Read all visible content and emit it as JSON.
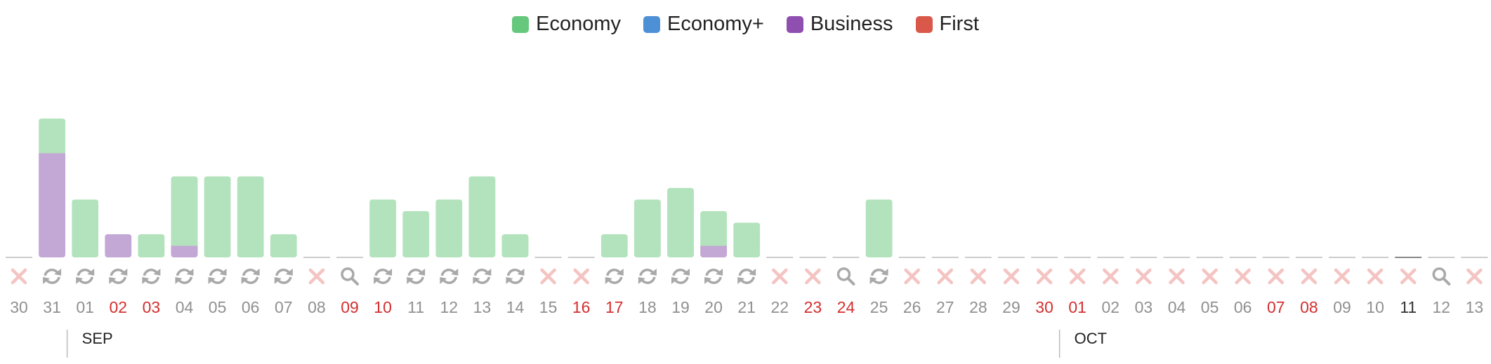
{
  "legend": [
    {
      "name": "Economy",
      "color": "#66c87d"
    },
    {
      "name": "Economy+",
      "color": "#4e90d6"
    },
    {
      "name": "Business",
      "color": "#8f4fb0"
    },
    {
      "name": "First",
      "color": "#d9584a"
    }
  ],
  "colors": {
    "economy_bar": "#b3e3bc",
    "business_bar": "#c3a7d5",
    "weekend_text": "#d32f2f",
    "weekday_text": "#909090",
    "today_text": "#333333",
    "status_none": "#f4c4c2",
    "status_icon": "#a9a9a9",
    "baseline": "#cccccc"
  },
  "chart_data": {
    "type": "bar",
    "stacked": true,
    "series": [
      {
        "name": "Economy",
        "values": [
          0,
          3,
          5,
          0,
          2,
          6,
          7,
          7,
          2,
          0,
          0,
          5,
          4,
          5,
          7,
          2,
          0,
          0,
          2,
          5,
          6,
          3,
          3,
          0,
          0,
          0,
          5,
          0,
          0,
          0,
          0,
          0,
          0,
          0,
          0,
          0,
          0,
          0,
          0,
          0,
          0,
          0,
          0,
          0,
          0
        ]
      },
      {
        "name": "Business",
        "values": [
          0,
          9,
          0,
          2,
          0,
          1,
          0,
          0,
          0,
          0,
          0,
          0,
          0,
          0,
          0,
          0,
          0,
          0,
          0,
          0,
          0,
          1,
          0,
          0,
          0,
          0,
          0,
          0,
          0,
          0,
          0,
          0,
          0,
          0,
          0,
          0,
          0,
          0,
          0,
          0,
          0,
          0,
          0,
          0,
          0
        ]
      }
    ],
    "categories": [
      "30",
      "31",
      "01",
      "02",
      "03",
      "04",
      "05",
      "06",
      "07",
      "08",
      "09",
      "10",
      "11",
      "12",
      "13",
      "14",
      "15",
      "16",
      "17",
      "18",
      "19",
      "20",
      "21",
      "22",
      "23",
      "24",
      "25",
      "26",
      "27",
      "28",
      "29",
      "30",
      "01",
      "02",
      "03",
      "04",
      "05",
      "06",
      "07",
      "08",
      "09",
      "10",
      "11",
      "12",
      "13"
    ],
    "weekend": [
      false,
      false,
      false,
      true,
      true,
      false,
      false,
      false,
      false,
      false,
      true,
      true,
      false,
      false,
      false,
      false,
      false,
      true,
      true,
      false,
      false,
      false,
      false,
      false,
      true,
      true,
      false,
      false,
      false,
      false,
      false,
      true,
      true,
      false,
      false,
      false,
      false,
      false,
      true,
      true,
      false,
      false,
      false,
      false,
      false
    ],
    "today_index": 42,
    "status": [
      "none",
      "refresh",
      "refresh",
      "refresh",
      "refresh",
      "refresh",
      "refresh",
      "refresh",
      "refresh",
      "none",
      "search",
      "refresh",
      "refresh",
      "refresh",
      "refresh",
      "refresh",
      "none",
      "none",
      "refresh",
      "refresh",
      "refresh",
      "refresh",
      "refresh",
      "none",
      "none",
      "search",
      "refresh",
      "none",
      "none",
      "none",
      "none",
      "none",
      "none",
      "none",
      "none",
      "none",
      "none",
      "none",
      "none",
      "none",
      "none",
      "none",
      "none",
      "search",
      "none"
    ],
    "months": [
      {
        "label": "SEP",
        "start_index": 2
      },
      {
        "label": "OCT",
        "start_index": 32
      }
    ]
  }
}
